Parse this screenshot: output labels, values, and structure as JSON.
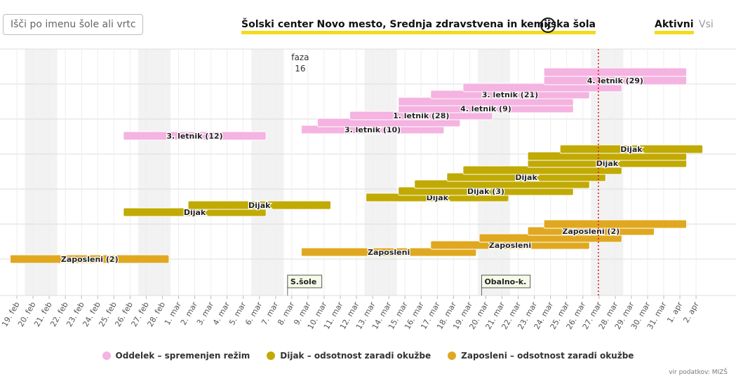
{
  "search": {
    "placeholder": "Išči po imenu šole ali vrtca"
  },
  "header": {
    "school_name": "Šolski center Novo mesto, Srednja zdravstvena in kemijska šola"
  },
  "tabs": {
    "active": "Aktivni",
    "all": "Vsi"
  },
  "colors": {
    "pink": "#f4b3e0",
    "olive": "#c0aa03",
    "gold": "#e0a820",
    "today_line": "#e02020"
  },
  "chart_data": {
    "type": "timeline",
    "x_dates": [
      "19. feb",
      "20. feb",
      "21. feb",
      "22. feb",
      "23. feb",
      "24. feb",
      "25. feb",
      "26. feb",
      "27. feb",
      "28. feb",
      "1. mar",
      "2. mar",
      "3. mar",
      "4. mar",
      "5. mar",
      "6. mar",
      "7. mar",
      "8. mar",
      "9. mar",
      "10. mar",
      "11. mar",
      "12. mar",
      "13. mar",
      "14. mar",
      "15. mar",
      "16. mar",
      "17. mar",
      "18. mar",
      "19. mar",
      "20. mar",
      "21. mar",
      "22. mar",
      "23. mar",
      "24. mar",
      "25. mar",
      "26. mar",
      "27. mar",
      "28. mar",
      "29. mar",
      "30. mar",
      "31. mar",
      "1. apr",
      "2. apr"
    ],
    "today": "27. mar",
    "phase": {
      "label": "faza",
      "number": "16",
      "date": "8. mar"
    },
    "markers": [
      {
        "label": "S.šole",
        "date": "8. mar"
      },
      {
        "label": "Obalno-k.",
        "date": "20. mar"
      }
    ],
    "bars": [
      {
        "label": "3. letnik (12)",
        "category": "Oddelek",
        "start": "26. feb",
        "end": "6. mar"
      },
      {
        "label": "3. letnik (10)",
        "category": "Oddelek",
        "start": "9. mar",
        "end": "17. mar"
      },
      {
        "label": "",
        "category": "Oddelek",
        "start": "10. mar",
        "end": "18. mar"
      },
      {
        "label": "1. letnik (28)",
        "category": "Oddelek",
        "start": "12. mar",
        "end": "20. mar"
      },
      {
        "label": "4. letnik (9)",
        "category": "Oddelek",
        "start": "15. mar",
        "end": "25. mar"
      },
      {
        "label": "",
        "category": "Oddelek",
        "start": "15. mar",
        "end": "25. mar"
      },
      {
        "label": "3. letnik (21)",
        "category": "Oddelek",
        "start": "17. mar",
        "end": "26. mar"
      },
      {
        "label": "",
        "category": "Oddelek",
        "start": "19. mar",
        "end": "28. mar"
      },
      {
        "label": "4. letnik (29)",
        "category": "Oddelek",
        "start": "24. mar",
        "end": "1. apr"
      },
      {
        "label": "",
        "category": "Oddelek",
        "start": "24. mar",
        "end": "1. apr"
      },
      {
        "label": "Dijak",
        "category": "Dijak",
        "start": "26. feb",
        "end": "6. mar"
      },
      {
        "label": "Dijak",
        "category": "Dijak",
        "start": "2. mar",
        "end": "10. mar"
      },
      {
        "label": "Dijak",
        "category": "Dijak",
        "start": "13. mar",
        "end": "21. mar"
      },
      {
        "label": "Dijak (3)",
        "category": "Dijak",
        "start": "15. mar",
        "end": "25. mar"
      },
      {
        "label": "",
        "category": "Dijak",
        "start": "16. mar",
        "end": "26. mar"
      },
      {
        "label": "Dijak",
        "category": "Dijak",
        "start": "18. mar",
        "end": "27. mar"
      },
      {
        "label": "",
        "category": "Dijak",
        "start": "19. mar",
        "end": "28. mar"
      },
      {
        "label": "Dijak",
        "category": "Dijak",
        "start": "23. mar",
        "end": "1. apr"
      },
      {
        "label": "",
        "category": "Dijak",
        "start": "23. mar",
        "end": "1. apr"
      },
      {
        "label": "Dijak",
        "category": "Dijak",
        "start": "25. mar",
        "end": "2. apr"
      },
      {
        "label": "Zaposleni (2)",
        "category": "Zaposleni",
        "start": "19. feb",
        "end": "28. feb"
      },
      {
        "label": "Zaposleni",
        "category": "Zaposleni",
        "start": "9. mar",
        "end": "19. mar"
      },
      {
        "label": "Zaposleni",
        "category": "Zaposleni",
        "start": "17. mar",
        "end": "26. mar"
      },
      {
        "label": "",
        "category": "Zaposleni",
        "start": "20. mar",
        "end": "28. mar"
      },
      {
        "label": "Zaposleni (2)",
        "category": "Zaposleni",
        "start": "23. mar",
        "end": "30. mar"
      },
      {
        "label": "",
        "category": "Zaposleni",
        "start": "24. mar",
        "end": "1. apr"
      }
    ],
    "legend": [
      {
        "label": "Oddelek – spremenjen režim",
        "color": "#f4b3e0"
      },
      {
        "label": "Dijak – odsotnost zaradi okužbe",
        "color": "#c0aa03"
      },
      {
        "label": "Zaposleni – odsotnost zaradi okužbe",
        "color": "#e0a820"
      }
    ],
    "legend_placement": "bottom",
    "grid": true
  },
  "source_text": "vir podatkov: MIZŠ"
}
